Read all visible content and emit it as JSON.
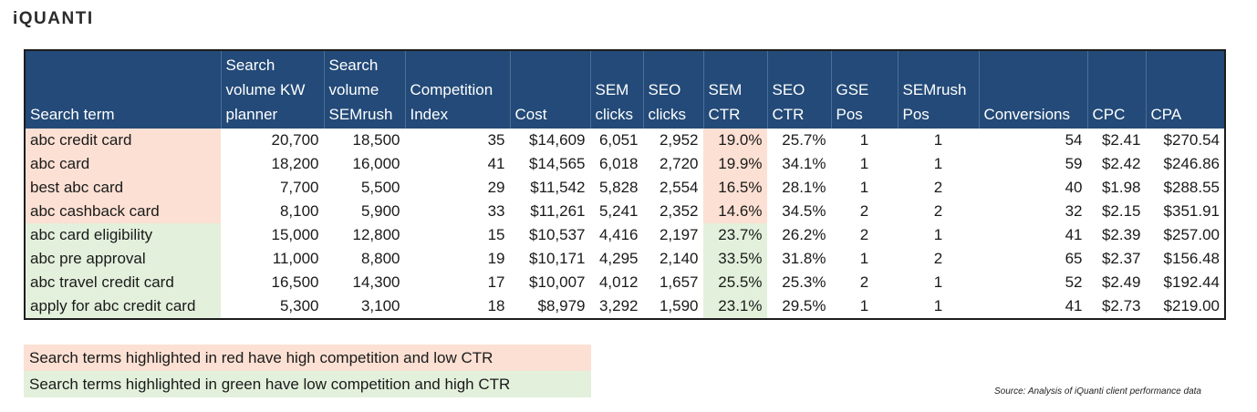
{
  "brand": {
    "logo": "iQUANTI"
  },
  "table": {
    "headers": [
      [
        "Search term"
      ],
      [
        "Search",
        "volume KW",
        "planner"
      ],
      [
        "Search",
        "volume",
        "SEMrush"
      ],
      [
        "Competition",
        "Index"
      ],
      [
        "Cost"
      ],
      [
        "SEM",
        "clicks"
      ],
      [
        "SEO",
        "clicks"
      ],
      [
        "SEM",
        "CTR"
      ],
      [
        "SEO",
        "CTR"
      ],
      [
        "GSE Pos"
      ],
      [
        "SEMrush",
        "Pos"
      ],
      [
        "Conversions"
      ],
      [
        "CPC"
      ],
      [
        "CPA"
      ]
    ],
    "rows": [
      {
        "highlight": "red",
        "cells": [
          "abc credit card",
          "20,700",
          "18,500",
          "35",
          "$14,609",
          "6,051",
          "2,952",
          "19.0%",
          "25.7%",
          "1",
          "1",
          "54",
          "$2.41",
          "$270.54"
        ]
      },
      {
        "highlight": "red",
        "cells": [
          "abc card",
          "18,200",
          "16,000",
          "41",
          "$14,565",
          "6,018",
          "2,720",
          "19.9%",
          "34.1%",
          "1",
          "1",
          "59",
          "$2.42",
          "$246.86"
        ]
      },
      {
        "highlight": "red",
        "cells": [
          "best abc card",
          "7,700",
          "5,500",
          "29",
          "$11,542",
          "5,828",
          "2,554",
          "16.5%",
          "28.1%",
          "1",
          "2",
          "40",
          "$1.98",
          "$288.55"
        ]
      },
      {
        "highlight": "red",
        "cells": [
          "abc cashback card",
          "8,100",
          "5,900",
          "33",
          "$11,261",
          "5,241",
          "2,352",
          "14.6%",
          "34.5%",
          "2",
          "2",
          "32",
          "$2.15",
          "$351.91"
        ]
      },
      {
        "highlight": "green",
        "cells": [
          "abc card eligibility",
          "15,000",
          "12,800",
          "15",
          "$10,537",
          "4,416",
          "2,197",
          "23.7%",
          "26.2%",
          "2",
          "1",
          "41",
          "$2.39",
          "$257.00"
        ]
      },
      {
        "highlight": "green",
        "cells": [
          "abc pre approval",
          "11,000",
          "8,800",
          "19",
          "$10,171",
          "4,295",
          "2,140",
          "33.5%",
          "31.8%",
          "1",
          "2",
          "65",
          "$2.37",
          "$156.48"
        ]
      },
      {
        "highlight": "green",
        "cells": [
          "abc travel credit card",
          "16,500",
          "14,300",
          "17",
          "$10,007",
          "4,012",
          "1,657",
          "25.5%",
          "25.3%",
          "2",
          "1",
          "52",
          "$2.49",
          "$192.44"
        ]
      },
      {
        "highlight": "green",
        "cells": [
          "apply for abc credit card",
          "5,300",
          "3,100",
          "18",
          "$8,979",
          "3,292",
          "1,590",
          "23.1%",
          "29.5%",
          "1",
          "1",
          "41",
          "$2.73",
          "$219.00"
        ]
      }
    ]
  },
  "legend": {
    "red": "Search terms highlighted in red have high competition and low CTR",
    "green": "Search terms highlighted in green have low competition and high CTR"
  },
  "source": "Source: Analysis of iQuanti client performance data",
  "colors": {
    "header": "#234a78",
    "red": "#fbe0d3",
    "green": "#e3f0dc"
  }
}
